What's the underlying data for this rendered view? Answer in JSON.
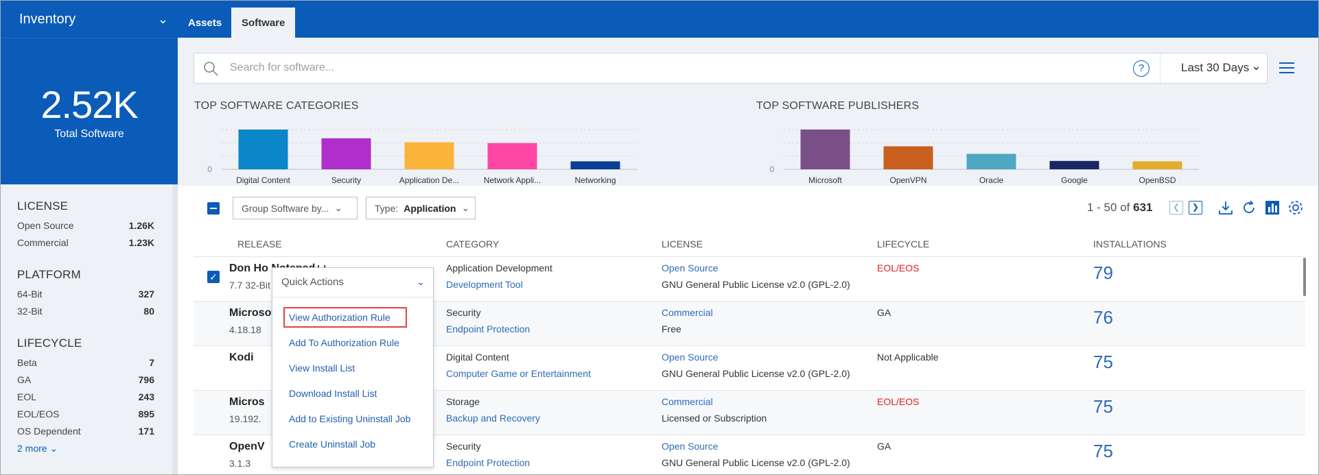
{
  "module": {
    "title": "Inventory"
  },
  "tabs": [
    {
      "label": "Assets"
    },
    {
      "label": "Software"
    }
  ],
  "summary": {
    "value": "2.52K",
    "label": "Total Software"
  },
  "facets": [
    {
      "title": "LICENSE",
      "rows": [
        {
          "label": "Open Source",
          "count": "1.26K"
        },
        {
          "label": "Commercial",
          "count": "1.23K"
        }
      ]
    },
    {
      "title": "PLATFORM",
      "rows": [
        {
          "label": "64-Bit",
          "count": "327"
        },
        {
          "label": "32-Bit",
          "count": "80"
        }
      ]
    },
    {
      "title": "LIFECYCLE",
      "rows": [
        {
          "label": "Beta",
          "count": "7"
        },
        {
          "label": "GA",
          "count": "796"
        },
        {
          "label": "EOL",
          "count": "243"
        },
        {
          "label": "EOL/EOS",
          "count": "895"
        },
        {
          "label": "OS Dependent",
          "count": "171"
        }
      ]
    }
  ],
  "more_link": "2 more",
  "search": {
    "placeholder": "Search for software...",
    "help": "?",
    "range": "Last 30 Days"
  },
  "chart_data": [
    {
      "type": "bar",
      "title": "TOP SOFTWARE CATEGORIES",
      "categories": [
        "Digital Content",
        "Security",
        "Application De...",
        "Network Appli...",
        "Networking"
      ],
      "values": [
        100,
        78,
        68,
        66,
        20
      ],
      "ytick": "0",
      "colors": [
        "#0a86c9",
        "#b02ecb",
        "#fbb43a",
        "#fe47a5",
        "#0b3e95"
      ]
    },
    {
      "type": "bar",
      "title": "TOP SOFTWARE PUBLISHERS",
      "categories": [
        "Microsoft",
        "OpenVPN",
        "Oracle",
        "Google",
        "OpenBSD"
      ],
      "values": [
        95,
        55,
        37,
        20,
        19
      ],
      "ytick": "0",
      "colors": [
        "#7a4e86",
        "#c9601f",
        "#4ea7c3",
        "#1b2563",
        "#e2ad2e"
      ]
    }
  ],
  "toolbar": {
    "group_by": "Group Software by...",
    "type_label": "Type:",
    "type_value": "Application"
  },
  "pager": {
    "range": "1 - 50 of",
    "total": "631"
  },
  "columns": [
    "RELEASE",
    "CATEGORY",
    "LICENSE",
    "LIFECYCLE",
    "INSTALLATIONS"
  ],
  "rows": [
    {
      "name": "Don Ho Notepad++",
      "version": "7.7 32-Bit",
      "category": "Application Development",
      "subcategory": "Development Tool",
      "license": "Open Source",
      "license_detail": "GNU General Public License v2.0 (GPL-2.0)",
      "lifecycle": "EOL/EOS",
      "installs": "79"
    },
    {
      "name": "Microsoft",
      "version": "4.18.18",
      "category": "Security",
      "subcategory": "Endpoint Protection",
      "license": "Commercial",
      "license_detail": "Free",
      "lifecycle": "GA",
      "installs": "76"
    },
    {
      "name": "Kodi",
      "version": "",
      "category": "Digital Content",
      "subcategory": "Computer Game or Entertainment",
      "license": "Open Source",
      "license_detail": "GNU General Public License v2.0 (GPL-2.0)",
      "lifecycle": "Not Applicable",
      "installs": "75"
    },
    {
      "name": "Micros",
      "version": "19.192.",
      "category": "Storage",
      "subcategory": "Backup and Recovery",
      "license": "Commercial",
      "license_detail": "Licensed or Subscription",
      "lifecycle": "EOL/EOS",
      "installs": "75"
    },
    {
      "name": "OpenV",
      "version": "3.1.3",
      "category": "Security",
      "subcategory": "Endpoint Protection",
      "license": "Open Source",
      "license_detail": "GNU General Public License v2.0 (GPL-2.0)",
      "lifecycle": "GA",
      "installs": "75"
    }
  ],
  "quick_actions": {
    "title": "Quick Actions",
    "items": [
      "View Authorization Rule",
      "Add To Authorization Rule",
      "View Install List",
      "Download Install List",
      "Add to Existing Uninstall Job",
      "Create Uninstall Job"
    ]
  },
  "colors": {
    "brand": "#0b5cb8",
    "link": "#2d6bb5",
    "alert": "#e02020"
  }
}
